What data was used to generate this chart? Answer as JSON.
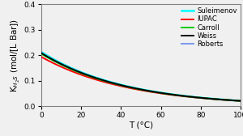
{
  "xlabel": "T (°C)",
  "ylabel": "K$_{H_2S}$ (mol/[L Bar])",
  "xlim": [
    0,
    100
  ],
  "ylim": [
    0.0,
    0.4
  ],
  "yticks": [
    0.0,
    0.1,
    0.2,
    0.3,
    0.4
  ],
  "xticks": [
    0,
    20,
    40,
    60,
    80,
    100
  ],
  "series": [
    {
      "name": "Suleimenov",
      "color": "cyan",
      "lw": 1.8,
      "zorder": 2,
      "A": 0.2115,
      "k": 0.0233
    },
    {
      "name": "IUPAC",
      "color": "red",
      "lw": 1.4,
      "zorder": 3,
      "A": 0.193,
      "k": 0.0226
    },
    {
      "name": "Carroll",
      "color": "#00cc00",
      "lw": 1.4,
      "zorder": 4,
      "A": 0.205,
      "k": 0.0231
    },
    {
      "name": "Weiss",
      "color": "black",
      "lw": 1.4,
      "zorder": 5,
      "A": 0.208,
      "k": 0.0232
    },
    {
      "name": "Roberts",
      "color": "#7799ee",
      "lw": 1.4,
      "zorder": 1,
      "A": 0.213,
      "k": 0.0234
    }
  ],
  "legend_fontsize": 6.0,
  "axis_label_fontsize": 7.5,
  "tick_fontsize": 6.5,
  "background_color": "#f0f0f0"
}
